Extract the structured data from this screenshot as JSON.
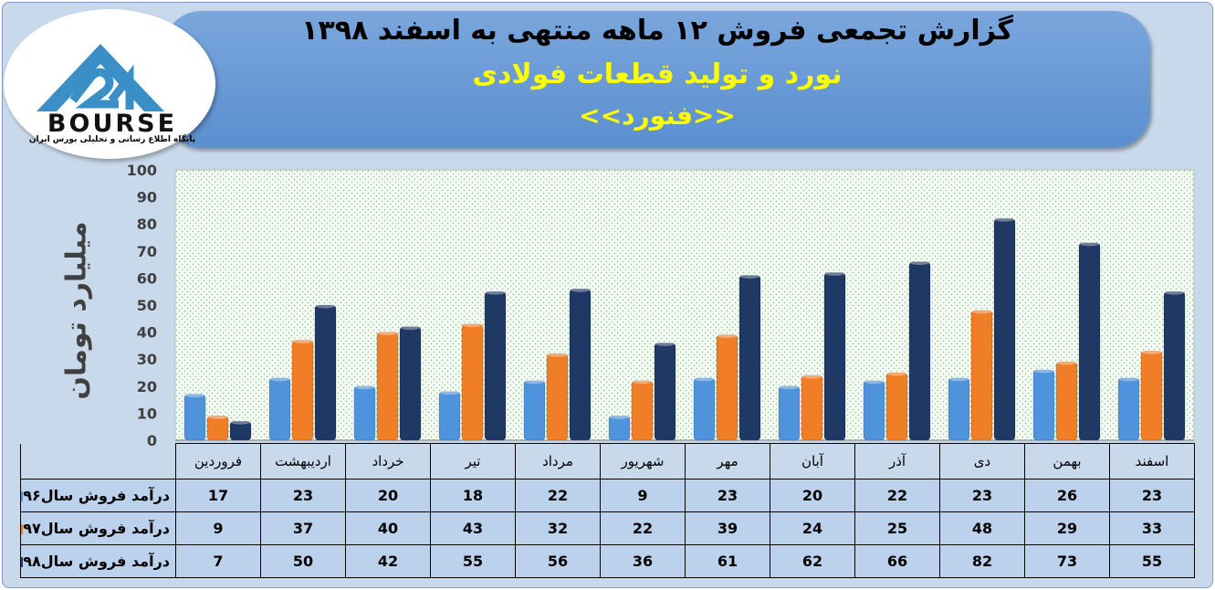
{
  "header": {
    "title_line1": "گزارش تجمعی فروش  ۱۲ ماهه منتهی به اسفند ۱۳۹۸",
    "title_line2": "نورد و تولید قطعات فولادی",
    "title_line3": "<<فنورد>>"
  },
  "logo": {
    "brand": "BOURSE",
    "caption": "پایگاه اطلاع رسانی و تحلیلی بورس ایران"
  },
  "colors": {
    "series96": "#4f93dc",
    "series97": "#f07e26",
    "series98": "#1f3864"
  },
  "chart_data": {
    "type": "bar",
    "ylabel": "میلیارد تومان",
    "ylim": [
      0,
      100
    ],
    "yticks": [
      "0",
      "10",
      "20",
      "30",
      "40",
      "50",
      "60",
      "70",
      "80",
      "90",
      "100"
    ],
    "categories": [
      "فروردین",
      "اردیبهشت",
      "خرداد",
      "تیر",
      "مرداد",
      "شهریور",
      "مهر",
      "آبان",
      "آذر",
      "دی",
      "بهمن",
      "اسفند"
    ],
    "series": [
      {
        "name": "درآمد فروش سال۹۶",
        "values": [
          17,
          23,
          20,
          18,
          22,
          9,
          23,
          20,
          22,
          23,
          26,
          23
        ]
      },
      {
        "name": "درآمد فروش سال۹۷",
        "values": [
          9,
          37,
          40,
          43,
          32,
          22,
          39,
          24,
          25,
          48,
          29,
          33
        ]
      },
      {
        "name": "درآمد فروش سال۹۸",
        "values": [
          7,
          50,
          42,
          55,
          56,
          36,
          61,
          62,
          66,
          82,
          73,
          55
        ]
      }
    ],
    "grid": false,
    "legend": "table-bottom"
  }
}
